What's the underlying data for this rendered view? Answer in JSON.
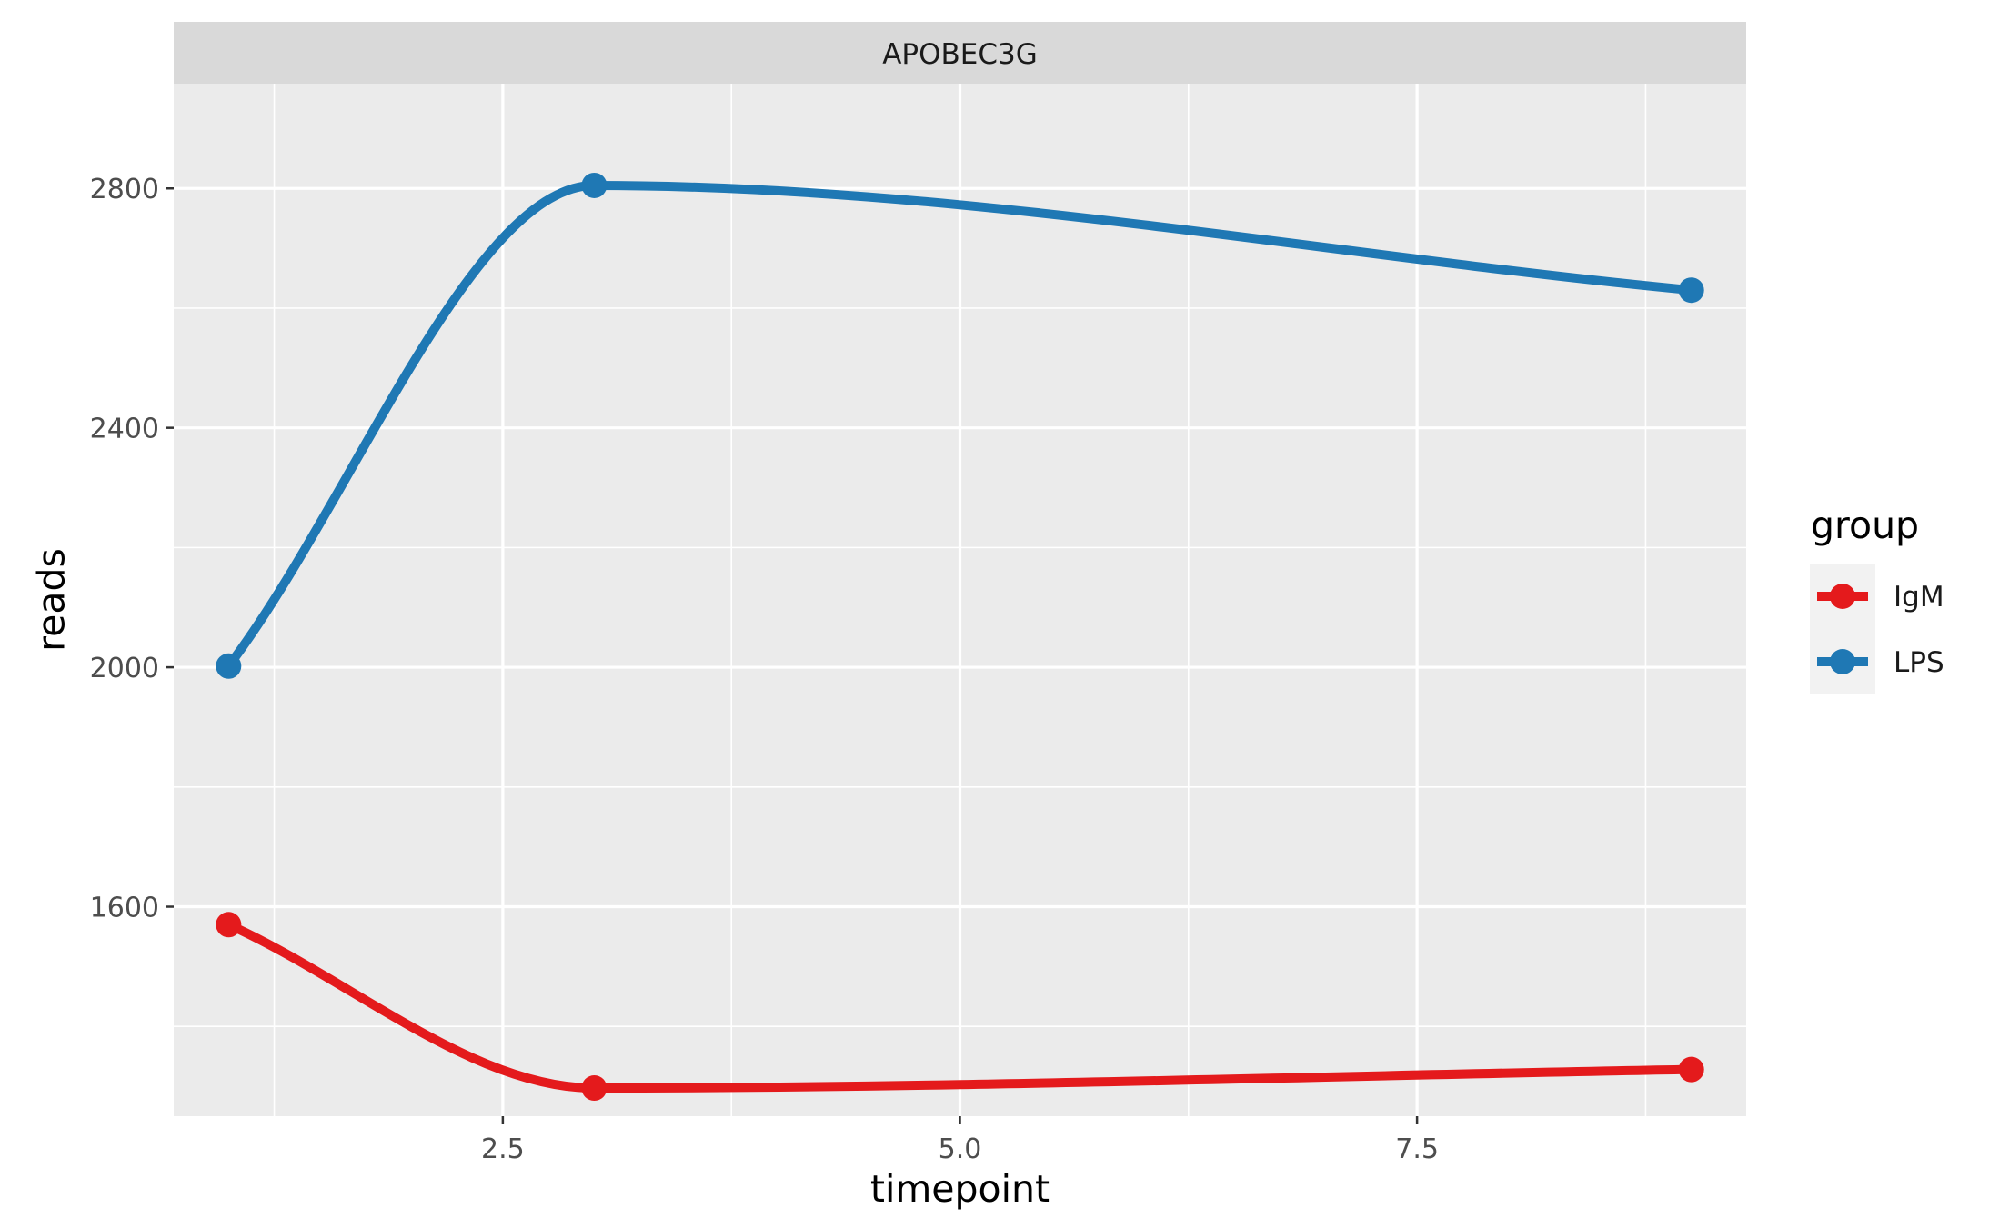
{
  "chart_data": {
    "type": "line",
    "facet_title": "APOBEC3G",
    "xlabel": "timepoint",
    "ylabel": "reads",
    "xlim": [
      0.7,
      9.3
    ],
    "ylim": [
      1250,
      2975
    ],
    "x_ticks": [
      2.5,
      5.0,
      7.5
    ],
    "x_tick_labels": [
      "2.5",
      "5.0",
      "7.5"
    ],
    "y_ticks": [
      1600,
      2000,
      2400,
      2800
    ],
    "y_tick_labels": [
      "1600",
      "2000",
      "2400",
      "2800"
    ],
    "grid": true,
    "legend": {
      "title": "group",
      "position": "right"
    },
    "series": [
      {
        "name": "IgM",
        "color": "#E41A1C",
        "x": [
          1,
          3,
          9
        ],
        "y": [
          1570,
          1297,
          1328
        ]
      },
      {
        "name": "LPS",
        "color": "#1F78B4",
        "x": [
          1,
          3,
          9
        ],
        "y": [
          2002,
          2805,
          2630
        ]
      }
    ]
  }
}
